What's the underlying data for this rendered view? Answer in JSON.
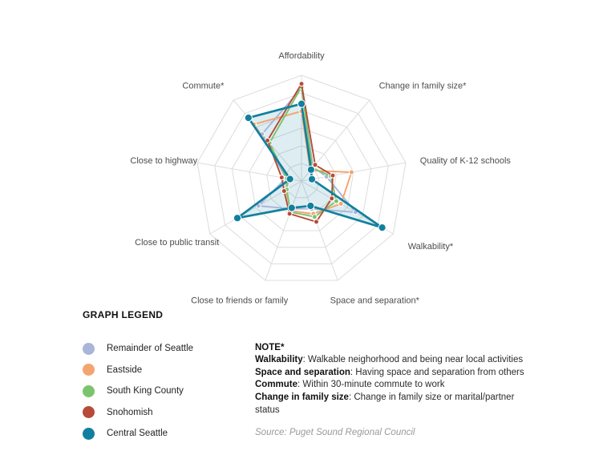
{
  "page": {
    "background": "#ffffff"
  },
  "chart_data": {
    "type": "radar",
    "title": "",
    "axes": [
      "Affordability",
      "Change in family size*",
      "Quality of K-12 schools",
      "Walkability*",
      "Space and separation*",
      "Close to friends or family",
      "Close to public transit",
      "Close to highway",
      "Commute*"
    ],
    "scale": [
      0,
      100
    ],
    "rings": 6,
    "grid": true,
    "grid_color": "#dcdcdc",
    "label_color": "#4d4d4d",
    "legend_position": "bottom-left",
    "series": [
      {
        "name": "Remainder of Seattle",
        "color": "#a9b6d9",
        "fill": false,
        "values": [
          88,
          17,
          24,
          59,
          28,
          28,
          47,
          15,
          58
        ]
      },
      {
        "name": "Eastside",
        "color": "#f4a470",
        "fill": false,
        "values": [
          66,
          13,
          48,
          43,
          33,
          30,
          17,
          12,
          70
        ]
      },
      {
        "name": "South King County",
        "color": "#7cc46c",
        "fill": false,
        "values": [
          89,
          16,
          28,
          38,
          36,
          31,
          16,
          14,
          47
        ]
      },
      {
        "name": "Snohomish",
        "color": "#b74b38",
        "fill": false,
        "values": [
          92,
          20,
          30,
          33,
          41,
          33,
          19,
          19,
          50
        ]
      },
      {
        "name": "Central Seattle",
        "color": "#11809e",
        "fill": true,
        "fill_opacity": 0.14,
        "values": [
          73,
          14,
          10,
          88,
          25,
          27,
          70,
          11,
          78
        ]
      }
    ]
  },
  "legend": {
    "title": "GRAPH LEGEND"
  },
  "note": {
    "title": "NOTE*",
    "items": [
      {
        "term": "Walkability",
        "text": ": Walkable neighorhood and being near local activities"
      },
      {
        "term": "Space and separation",
        "text": ": Having space and separation from others"
      },
      {
        "term": "Commute",
        "text": ": Within 30-minute commute to work"
      },
      {
        "term": "Change in family size",
        "text": ": Change in family size or marital/partner status"
      }
    ],
    "source": "Source: Puget Sound Regional Council"
  }
}
